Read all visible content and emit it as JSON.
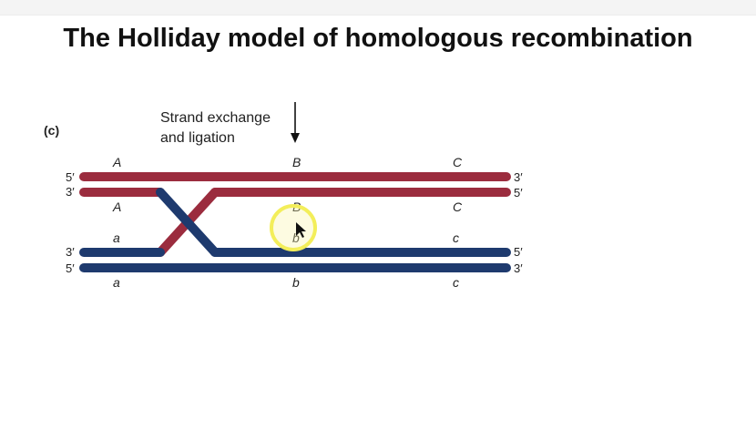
{
  "title": "The Holliday model of homologous recombination",
  "panel_label": "(c)",
  "annotation": {
    "line1": "Strand exchange",
    "line2": "and ligation"
  },
  "ends": {
    "left_top": "5′",
    "left_second": "3′",
    "left_third": "3′",
    "left_bottom": "5′",
    "right_top": "3′",
    "right_second": "5′",
    "right_third": "5′",
    "right_bottom": "3′"
  },
  "alleles": {
    "top_row": [
      "A",
      "B",
      "C"
    ],
    "second_row": [
      "A",
      "B",
      "C"
    ],
    "third_row": [
      "a",
      "b",
      "c"
    ],
    "bottom_row": [
      "a",
      "b",
      "c"
    ]
  },
  "colors": {
    "red_strand": "#9b2c3e",
    "blue_strand": "#1e3a6e",
    "cursor_ring": "#f3ee5a"
  },
  "icons": [
    "down-arrow-icon",
    "cursor-highlight-icon"
  ]
}
